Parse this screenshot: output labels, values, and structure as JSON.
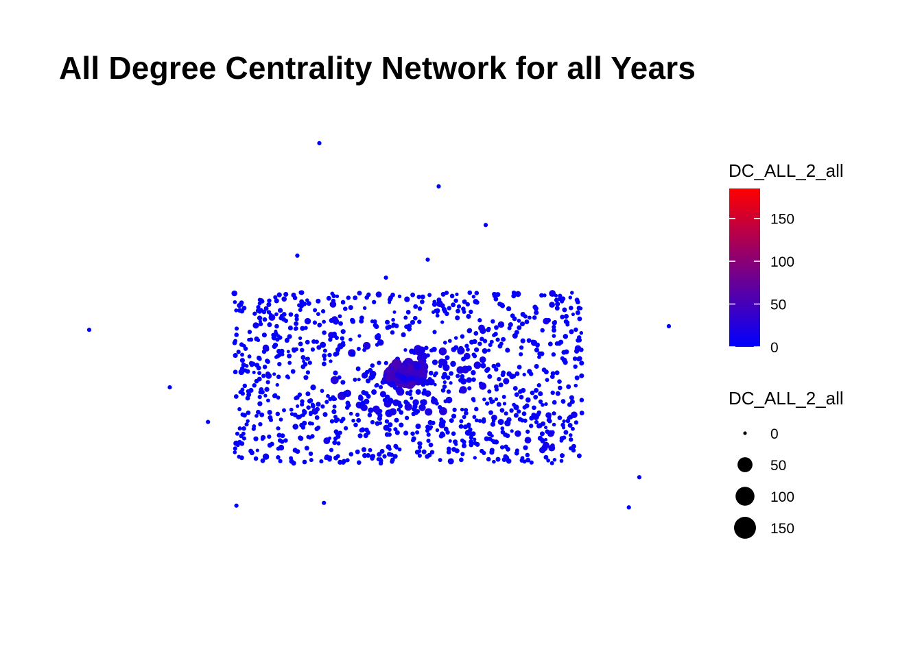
{
  "chart_data": {
    "type": "scatter",
    "title": "All Degree Centrality Network for all Years",
    "xlabel": "",
    "ylabel": "",
    "grid": false,
    "axes_visible": false,
    "xlim": [
      0,
      100
    ],
    "ylim": [
      0,
      100
    ],
    "size_color_variable": "DC_ALL_2_all",
    "color_scale": {
      "low": "#0000ff",
      "high": "#ff0000",
      "limits": [
        0,
        185
      ]
    },
    "legends": [
      {
        "kind": "colorbar",
        "title": "DC_ALL_2_all",
        "ticks": [
          0,
          50,
          100,
          150
        ],
        "placement": "right"
      },
      {
        "kind": "size",
        "title": "DC_ALL_2_all",
        "ticks": [
          0,
          50,
          100,
          150
        ],
        "placement": "right"
      }
    ],
    "outlier_points": [
      {
        "x": 39.7,
        "y": 96.2,
        "v": 1
      },
      {
        "x": 60.3,
        "y": 86.6,
        "v": 1
      },
      {
        "x": 68.4,
        "y": 78.0,
        "v": 1
      },
      {
        "x": 35.9,
        "y": 71.2,
        "v": 1
      },
      {
        "x": 58.4,
        "y": 70.3,
        "v": 1
      },
      {
        "x": 51.2,
        "y": 66.3,
        "v": 1
      },
      {
        "x": 0.0,
        "y": 54.7,
        "v": 1
      },
      {
        "x": 100.0,
        "y": 55.5,
        "v": 1
      },
      {
        "x": 13.9,
        "y": 41.9,
        "v": 1
      },
      {
        "x": 20.5,
        "y": 34.2,
        "v": 1
      },
      {
        "x": 94.9,
        "y": 21.9,
        "v": 1
      },
      {
        "x": 25.4,
        "y": 15.6,
        "v": 1
      },
      {
        "x": 40.5,
        "y": 16.2,
        "v": 1
      },
      {
        "x": 93.1,
        "y": 15.2,
        "v": 1
      }
    ],
    "cluster_points_note": ""
  }
}
